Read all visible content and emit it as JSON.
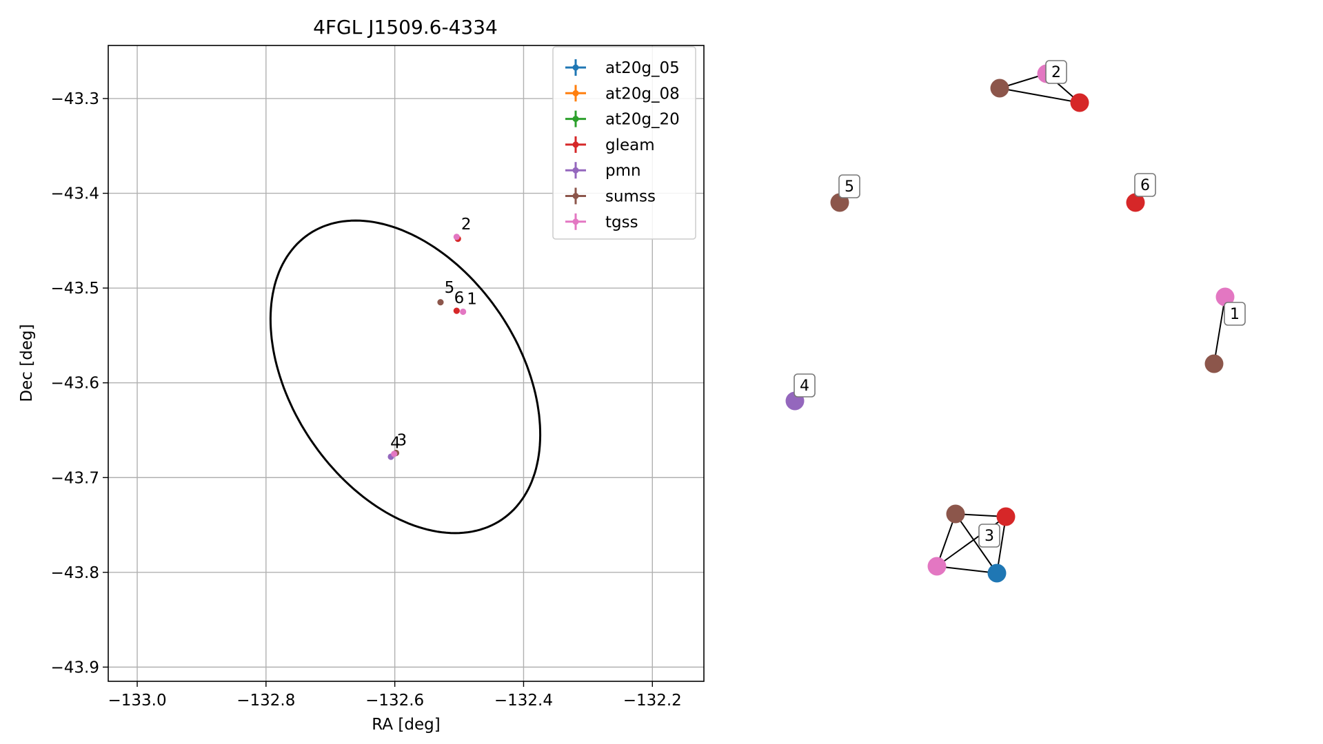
{
  "chart_data": [
    {
      "type": "scatter",
      "title": "4FGL J1509.6-4334",
      "xlabel": "RA [deg]",
      "ylabel": "Dec [deg]",
      "xlim": [
        -133.045,
        -132.12
      ],
      "ylim": [
        -43.915,
        -43.244
      ],
      "x_ticks": [
        -133.0,
        -132.8,
        -132.6,
        -132.4,
        -132.2
      ],
      "x_tick_labels": [
        "−133.0",
        "−132.8",
        "−132.6",
        "−132.4",
        "−132.2"
      ],
      "y_ticks": [
        -43.3,
        -43.4,
        -43.5,
        -43.6,
        -43.7,
        -43.8,
        -43.9
      ],
      "y_tick_labels": [
        "−43.3",
        "−43.4",
        "−43.5",
        "−43.6",
        "−43.7",
        "−43.8",
        "−43.9"
      ],
      "grid": true,
      "legend_position": "top-right",
      "series": [
        {
          "name": "at20g_05",
          "color": "#1f77b4",
          "points": []
        },
        {
          "name": "at20g_08",
          "color": "#ff7f0e",
          "points": []
        },
        {
          "name": "at20g_20",
          "color": "#2ca02c",
          "points": []
        },
        {
          "name": "gleam",
          "color": "#d62728",
          "points": [
            {
              "x": -132.502,
              "y": -43.448
            },
            {
              "x": -132.504,
              "y": -43.524
            }
          ]
        },
        {
          "name": "pmn",
          "color": "#9467bd",
          "points": [
            {
              "x": -132.606,
              "y": -43.678
            }
          ]
        },
        {
          "name": "sumss",
          "color": "#8c564b",
          "points": [
            {
              "x": -132.529,
              "y": -43.515
            },
            {
              "x": -132.598,
              "y": -43.674
            }
          ]
        },
        {
          "name": "tgss",
          "color": "#e377c2",
          "points": [
            {
              "x": -132.504,
              "y": -43.446
            },
            {
              "x": -132.494,
              "y": -43.525
            },
            {
              "x": -132.601,
              "y": -43.675
            }
          ]
        }
      ],
      "annotations": [
        {
          "text": "2",
          "x": -132.497,
          "y": -43.438
        },
        {
          "text": "5",
          "x": -132.523,
          "y": -43.505
        },
        {
          "text": "6",
          "x": -132.508,
          "y": -43.516
        },
        {
          "text": "1",
          "x": -132.488,
          "y": -43.517
        },
        {
          "text": "3",
          "x": -132.597,
          "y": -43.666
        },
        {
          "text": "4",
          "x": -132.607,
          "y": -43.669
        }
      ],
      "ellipse": {
        "center_ra": -132.575,
        "center_dec": -43.577,
        "color": "#000000"
      }
    },
    {
      "type": "graph",
      "nodes": [
        {
          "id": "g2",
          "catalog": "tgss",
          "color": "#e377c2"
        },
        {
          "id": "g2",
          "catalog": "sumss",
          "color": "#8c564b"
        },
        {
          "id": "g2",
          "catalog": "gleam",
          "color": "#d62728"
        },
        {
          "id": "g5",
          "catalog": "sumss",
          "color": "#8c564b"
        },
        {
          "id": "g6",
          "catalog": "gleam",
          "color": "#d62728"
        },
        {
          "id": "g1",
          "catalog": "tgss",
          "color": "#e377c2"
        },
        {
          "id": "g1",
          "catalog": "sumss",
          "color": "#8c564b"
        },
        {
          "id": "g4",
          "catalog": "pmn",
          "color": "#9467bd"
        },
        {
          "id": "g3",
          "catalog": "sumss",
          "color": "#8c564b"
        },
        {
          "id": "g3",
          "catalog": "gleam",
          "color": "#d62728"
        },
        {
          "id": "g3",
          "catalog": "tgss",
          "color": "#e377c2"
        },
        {
          "id": "g3",
          "catalog": "at20g_05",
          "color": "#1f77b4"
        }
      ],
      "edges": [
        [
          0,
          1
        ],
        [
          1,
          2
        ],
        [
          0,
          2
        ],
        [
          5,
          6
        ],
        [
          8,
          9
        ],
        [
          8,
          10
        ],
        [
          8,
          11
        ],
        [
          9,
          10
        ],
        [
          9,
          11
        ],
        [
          10,
          11
        ]
      ],
      "group_labels": [
        "2",
        "5",
        "6",
        "1",
        "4",
        "3"
      ]
    }
  ]
}
